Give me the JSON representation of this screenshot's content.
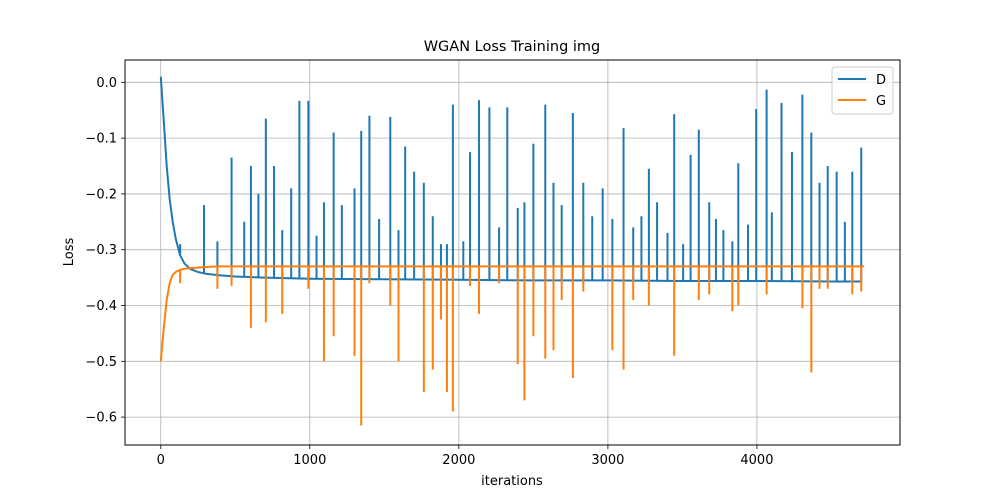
{
  "chart_data": {
    "type": "line",
    "title": "WGAN Loss Training img",
    "xlabel": "iterations",
    "ylabel": "Loss",
    "xlim": [
      -240,
      4960
    ],
    "ylim": [
      -0.65,
      0.04
    ],
    "xticks": [
      0,
      1000,
      2000,
      3000,
      4000
    ],
    "xtick_labels": [
      "0",
      "1000",
      "2000",
      "3000",
      "4000"
    ],
    "yticks": [
      0.0,
      -0.1,
      -0.2,
      -0.3,
      -0.4,
      -0.5,
      -0.6
    ],
    "ytick_labels": [
      "0.0",
      "−0.1",
      "−0.2",
      "−0.3",
      "−0.4",
      "−0.5",
      "−0.6"
    ],
    "grid": true,
    "legend_position": "top-right",
    "series": [
      {
        "name": "D",
        "color": "#1f77b4",
        "x": [
          0,
          20,
          40,
          60,
          80,
          100,
          130,
          160,
          200,
          250,
          300,
          400,
          500,
          700,
          1000,
          1500,
          2000,
          2500,
          3000,
          3500,
          4000,
          4500,
          4700
        ],
        "values": [
          0.01,
          -0.07,
          -0.15,
          -0.21,
          -0.25,
          -0.28,
          -0.31,
          -0.325,
          -0.335,
          -0.34,
          -0.343,
          -0.346,
          -0.348,
          -0.35,
          -0.352,
          -0.353,
          -0.354,
          -0.355,
          -0.355,
          -0.356,
          -0.356,
          -0.357,
          -0.357
        ],
        "spikes": [
          {
            "x": 130,
            "y": -0.29
          },
          {
            "x": 290,
            "y": -0.22
          },
          {
            "x": 380,
            "y": -0.285
          },
          {
            "x": 475,
            "y": -0.135
          },
          {
            "x": 560,
            "y": -0.25
          },
          {
            "x": 605,
            "y": -0.15
          },
          {
            "x": 655,
            "y": -0.2
          },
          {
            "x": 705,
            "y": -0.065
          },
          {
            "x": 760,
            "y": -0.15
          },
          {
            "x": 815,
            "y": -0.265
          },
          {
            "x": 875,
            "y": -0.19
          },
          {
            "x": 930,
            "y": -0.033
          },
          {
            "x": 990,
            "y": -0.033
          },
          {
            "x": 1045,
            "y": -0.275
          },
          {
            "x": 1095,
            "y": -0.215
          },
          {
            "x": 1160,
            "y": -0.09
          },
          {
            "x": 1215,
            "y": -0.22
          },
          {
            "x": 1300,
            "y": -0.19
          },
          {
            "x": 1345,
            "y": -0.087
          },
          {
            "x": 1400,
            "y": -0.06
          },
          {
            "x": 1465,
            "y": -0.245
          },
          {
            "x": 1540,
            "y": -0.062
          },
          {
            "x": 1595,
            "y": -0.265
          },
          {
            "x": 1640,
            "y": -0.115
          },
          {
            "x": 1700,
            "y": -0.16
          },
          {
            "x": 1765,
            "y": -0.18
          },
          {
            "x": 1825,
            "y": -0.24
          },
          {
            "x": 1880,
            "y": -0.29
          },
          {
            "x": 1920,
            "y": -0.29
          },
          {
            "x": 1960,
            "y": -0.04
          },
          {
            "x": 2030,
            "y": -0.285
          },
          {
            "x": 2075,
            "y": -0.125
          },
          {
            "x": 2135,
            "y": -0.032
          },
          {
            "x": 2205,
            "y": -0.045
          },
          {
            "x": 2270,
            "y": -0.26
          },
          {
            "x": 2325,
            "y": -0.045
          },
          {
            "x": 2395,
            "y": -0.225
          },
          {
            "x": 2440,
            "y": -0.215
          },
          {
            "x": 2500,
            "y": -0.11
          },
          {
            "x": 2580,
            "y": -0.04
          },
          {
            "x": 2635,
            "y": -0.18
          },
          {
            "x": 2690,
            "y": -0.22
          },
          {
            "x": 2765,
            "y": -0.055
          },
          {
            "x": 2835,
            "y": -0.18
          },
          {
            "x": 2895,
            "y": -0.24
          },
          {
            "x": 2965,
            "y": -0.19
          },
          {
            "x": 3030,
            "y": -0.245
          },
          {
            "x": 3105,
            "y": -0.082
          },
          {
            "x": 3170,
            "y": -0.26
          },
          {
            "x": 3225,
            "y": -0.24
          },
          {
            "x": 3275,
            "y": -0.155
          },
          {
            "x": 3330,
            "y": -0.215
          },
          {
            "x": 3400,
            "y": -0.27
          },
          {
            "x": 3445,
            "y": -0.057
          },
          {
            "x": 3505,
            "y": -0.29
          },
          {
            "x": 3555,
            "y": -0.13
          },
          {
            "x": 3610,
            "y": -0.085
          },
          {
            "x": 3680,
            "y": -0.215
          },
          {
            "x": 3725,
            "y": -0.245
          },
          {
            "x": 3775,
            "y": -0.265
          },
          {
            "x": 3835,
            "y": -0.285
          },
          {
            "x": 3875,
            "y": -0.145
          },
          {
            "x": 3940,
            "y": -0.255
          },
          {
            "x": 3995,
            "y": -0.048
          },
          {
            "x": 4065,
            "y": -0.013
          },
          {
            "x": 4100,
            "y": -0.233
          },
          {
            "x": 4165,
            "y": -0.037
          },
          {
            "x": 4235,
            "y": -0.125
          },
          {
            "x": 4305,
            "y": -0.022
          },
          {
            "x": 4365,
            "y": -0.09
          },
          {
            "x": 4420,
            "y": -0.18
          },
          {
            "x": 4475,
            "y": -0.15
          },
          {
            "x": 4535,
            "y": -0.16
          },
          {
            "x": 4590,
            "y": -0.25
          },
          {
            "x": 4640,
            "y": -0.16
          },
          {
            "x": 4700,
            "y": -0.117
          }
        ]
      },
      {
        "name": "G",
        "color": "#ff7f0e",
        "x": [
          0,
          20,
          40,
          60,
          80,
          100,
          130,
          160,
          200,
          250,
          300,
          400,
          500,
          700,
          1000,
          1500,
          2000,
          2500,
          3000,
          3500,
          4000,
          4500,
          4720
        ],
        "values": [
          -0.5,
          -0.44,
          -0.39,
          -0.36,
          -0.345,
          -0.34,
          -0.336,
          -0.334,
          -0.333,
          -0.332,
          -0.331,
          -0.33,
          -0.33,
          -0.33,
          -0.33,
          -0.33,
          -0.33,
          -0.33,
          -0.33,
          -0.33,
          -0.33,
          -0.33,
          -0.33
        ],
        "spikes": [
          {
            "x": 130,
            "y": -0.36
          },
          {
            "x": 380,
            "y": -0.37
          },
          {
            "x": 475,
            "y": -0.365
          },
          {
            "x": 605,
            "y": -0.44
          },
          {
            "x": 705,
            "y": -0.43
          },
          {
            "x": 815,
            "y": -0.415
          },
          {
            "x": 990,
            "y": -0.37
          },
          {
            "x": 1095,
            "y": -0.5
          },
          {
            "x": 1160,
            "y": -0.455
          },
          {
            "x": 1300,
            "y": -0.49
          },
          {
            "x": 1345,
            "y": -0.615
          },
          {
            "x": 1400,
            "y": -0.36
          },
          {
            "x": 1540,
            "y": -0.4
          },
          {
            "x": 1595,
            "y": -0.5
          },
          {
            "x": 1765,
            "y": -0.555
          },
          {
            "x": 1825,
            "y": -0.515
          },
          {
            "x": 1880,
            "y": -0.425
          },
          {
            "x": 1920,
            "y": -0.555
          },
          {
            "x": 1960,
            "y": -0.59
          },
          {
            "x": 2075,
            "y": -0.365
          },
          {
            "x": 2135,
            "y": -0.415
          },
          {
            "x": 2270,
            "y": -0.36
          },
          {
            "x": 2395,
            "y": -0.505
          },
          {
            "x": 2440,
            "y": -0.57
          },
          {
            "x": 2500,
            "y": -0.455
          },
          {
            "x": 2580,
            "y": -0.495
          },
          {
            "x": 2635,
            "y": -0.48
          },
          {
            "x": 2690,
            "y": -0.39
          },
          {
            "x": 2765,
            "y": -0.53
          },
          {
            "x": 2835,
            "y": -0.375
          },
          {
            "x": 3030,
            "y": -0.48
          },
          {
            "x": 3105,
            "y": -0.515
          },
          {
            "x": 3170,
            "y": -0.39
          },
          {
            "x": 3275,
            "y": -0.4
          },
          {
            "x": 3445,
            "y": -0.49
          },
          {
            "x": 3610,
            "y": -0.39
          },
          {
            "x": 3680,
            "y": -0.38
          },
          {
            "x": 3835,
            "y": -0.41
          },
          {
            "x": 3875,
            "y": -0.4
          },
          {
            "x": 4065,
            "y": -0.38
          },
          {
            "x": 4305,
            "y": -0.405
          },
          {
            "x": 4365,
            "y": -0.52
          },
          {
            "x": 4420,
            "y": -0.37
          },
          {
            "x": 4475,
            "y": -0.37
          },
          {
            "x": 4640,
            "y": -0.38
          },
          {
            "x": 4700,
            "y": -0.375
          }
        ]
      }
    ]
  }
}
